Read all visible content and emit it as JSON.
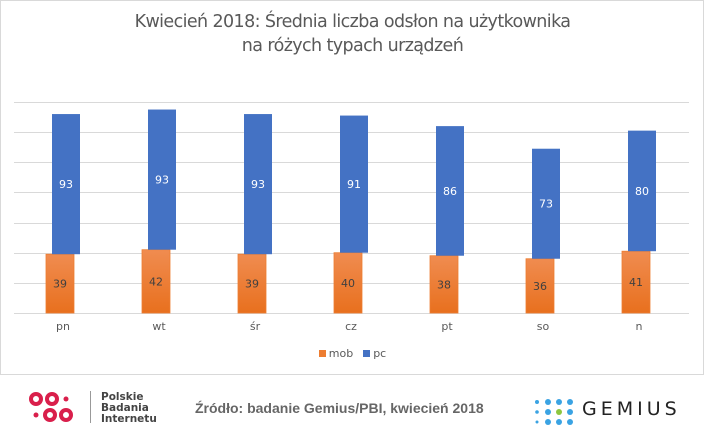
{
  "chart_data": {
    "type": "bar",
    "stacked": true,
    "title": "Kwiecień 2018: Średnia liczba odsłon na użytkownika na różych typach urządzeń",
    "title_lines": [
      "Kwiecień 2018: Średnia liczba odsłon na użytkownika",
      "na różych typach urządzeń"
    ],
    "categories": [
      "pn",
      "wt",
      "śr",
      "cz",
      "pt",
      "so",
      "n"
    ],
    "series": [
      {
        "name": "mob",
        "color": "#ED7D31",
        "values": [
          39,
          42,
          39,
          40,
          38,
          36,
          41
        ]
      },
      {
        "name": "pc",
        "color": "#4472C4",
        "values": [
          93,
          93,
          93,
          91,
          86,
          73,
          80
        ]
      }
    ],
    "xlabel": "",
    "ylabel": "",
    "ylim": [
      0,
      140
    ],
    "grid": true,
    "y_tick_labels_visible": false,
    "data_labels": true,
    "legend_position": "bottom"
  },
  "footer": {
    "pbi_lines": [
      "Polskie",
      "Badania",
      "Internetu"
    ],
    "source": "Źródło: badanie Gemius/PBI, kwiecień 2018",
    "gemius": "GEMIUS",
    "pbi_color": "#D91F4B",
    "gemius_dot_color": "#3AA3E3",
    "gemius_accent_color": "#8DC63F"
  }
}
